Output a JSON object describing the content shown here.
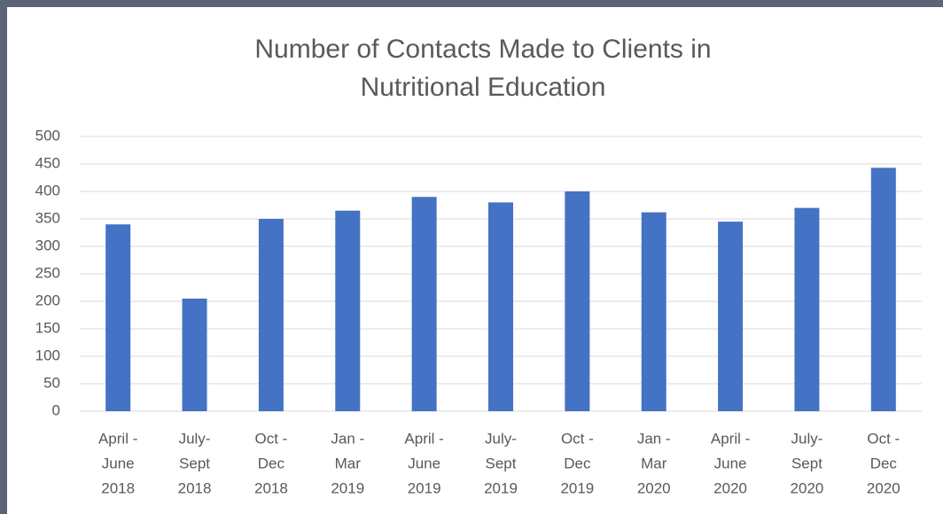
{
  "chart_data": {
    "type": "bar",
    "title": [
      "Number of Contacts Made to Clients in",
      "Nutritional Education"
    ],
    "categories": [
      [
        "April -",
        "June",
        "2018"
      ],
      [
        "July-",
        "Sept",
        "2018"
      ],
      [
        "Oct -",
        "Dec",
        "2018"
      ],
      [
        "Jan -",
        "Mar",
        "2019"
      ],
      [
        "April -",
        "June",
        "2019"
      ],
      [
        "July-",
        "Sept",
        "2019"
      ],
      [
        "Oct -",
        "Dec",
        "2019"
      ],
      [
        "Jan -",
        "Mar",
        "2020"
      ],
      [
        "April -",
        "June",
        "2020"
      ],
      [
        "July-",
        "Sept",
        "2020"
      ],
      [
        "Oct -",
        "Dec",
        "2020"
      ]
    ],
    "values": [
      340,
      205,
      350,
      365,
      390,
      380,
      400,
      362,
      345,
      370,
      443
    ],
    "color": "#4472c4",
    "ylim": [
      0,
      500
    ],
    "yticks": [
      0,
      50,
      100,
      150,
      200,
      250,
      300,
      350,
      400,
      450,
      500
    ],
    "grid": true
  }
}
